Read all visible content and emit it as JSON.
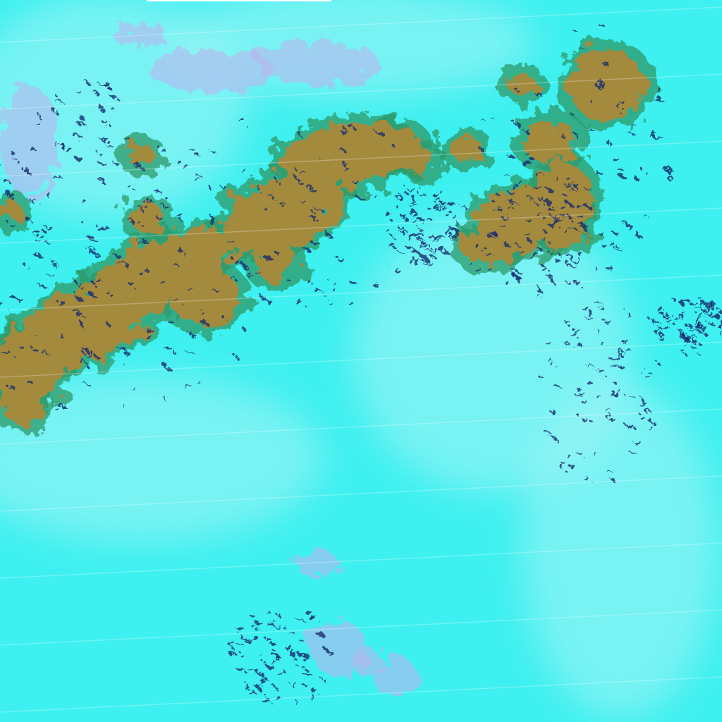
{
  "image": {
    "kind": "false-color satellite imagery",
    "colors": {
      "background": "#3ef0f0",
      "haze": "#a8f4f6",
      "land": "#a48a3c",
      "land_edge": "#2f9a6a",
      "dark_speckle": "#1b2a6e",
      "lavender_cloud": "#b9b6ee",
      "top_bar": "#ffffff"
    }
  }
}
